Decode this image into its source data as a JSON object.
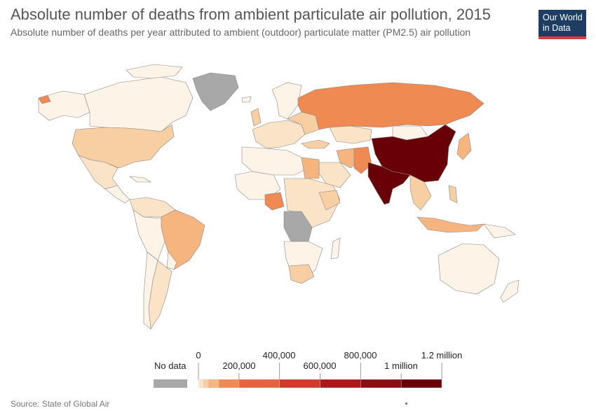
{
  "header": {
    "title": "Absolute number of deaths from ambient particulate air pollution, 2015",
    "subtitle": "Absolute number of deaths per year attributed to ambient (outdoor) particulate matter (PM2.5) air pollution",
    "logo_line1": "Our World",
    "logo_line2": "in Data"
  },
  "legend": {
    "no_data_label": "No data",
    "tick_labels_top": [
      "0",
      "400,000",
      "800,000",
      "1.2 million"
    ],
    "tick_labels_bottom": [
      "200,000",
      "600,000",
      "1 million"
    ],
    "colors": [
      "#fdf3e6",
      "#fbe3c8",
      "#f8cfa3",
      "#f6b57f",
      "#ee8a52",
      "#e8623f",
      "#d1392c",
      "#b1161c",
      "#8c0d15",
      "#690007"
    ],
    "no_data_color": "#a8a8a8"
  },
  "footer": {
    "source": "Source: State of Global Air"
  },
  "map": {
    "regions": [
      {
        "name": "North America (Canada/Alaska)",
        "color_key": "low"
      },
      {
        "name": "Greenland",
        "color_key": "no-data"
      },
      {
        "name": "United States",
        "color_key": "mid-light"
      },
      {
        "name": "Mexico",
        "color_key": "light"
      },
      {
        "name": "Brazil",
        "color_key": "mid-light"
      },
      {
        "name": "Russia",
        "color_key": "mid"
      },
      {
        "name": "China",
        "color_key": "max"
      },
      {
        "name": "India",
        "color_key": "max"
      },
      {
        "name": "Pakistan",
        "color_key": "mid"
      },
      {
        "name": "Nigeria",
        "color_key": "mid"
      },
      {
        "name": "Egypt",
        "color_key": "mid-light"
      },
      {
        "name": "DR Congo",
        "color_key": "no-data"
      },
      {
        "name": "Australia",
        "color_key": "low"
      }
    ]
  }
}
